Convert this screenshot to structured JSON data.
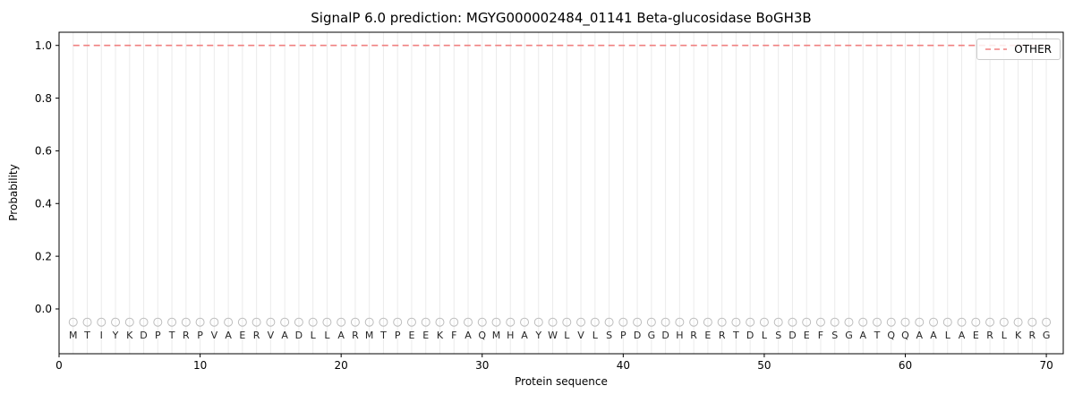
{
  "chart_data": {
    "type": "line",
    "title": "SignalP 6.0 prediction: MGYG000002484_01141 Beta-glucosidase BoGH3B",
    "xlabel": "Protein sequence",
    "ylabel": "Probability",
    "xlim": [
      0,
      71.2
    ],
    "ylim": [
      -0.17,
      1.05
    ],
    "xticks": [
      0,
      10,
      20,
      30,
      40,
      50,
      60,
      70
    ],
    "yticks": [
      0.0,
      0.2,
      0.4,
      0.6,
      0.8,
      1.0
    ],
    "grid": "vertical-line-per-residue",
    "legend": {
      "position": "upper right",
      "entries": [
        {
          "label": "OTHER",
          "color": "#f08080",
          "dash": true
        }
      ]
    },
    "sequence": "MTIYKDPTRPVAERVADLLARMTPEEKFAQMHAYWLVLSPDGDHRERTDLSDEFSGATQQAALAERLKRG",
    "series": [
      {
        "name": "OTHER",
        "x_range": [
          1,
          70
        ],
        "constant_value": 1.0,
        "style": "dashed",
        "color": "#f08080"
      }
    ],
    "residue_markers": {
      "y": -0.05,
      "shape": "open-circle",
      "color": "#bdbdbd"
    },
    "colors": {
      "grid": "#ebebeb",
      "spine": "#000000",
      "tick_text": "#000000",
      "residue_letter": "#262626"
    }
  }
}
